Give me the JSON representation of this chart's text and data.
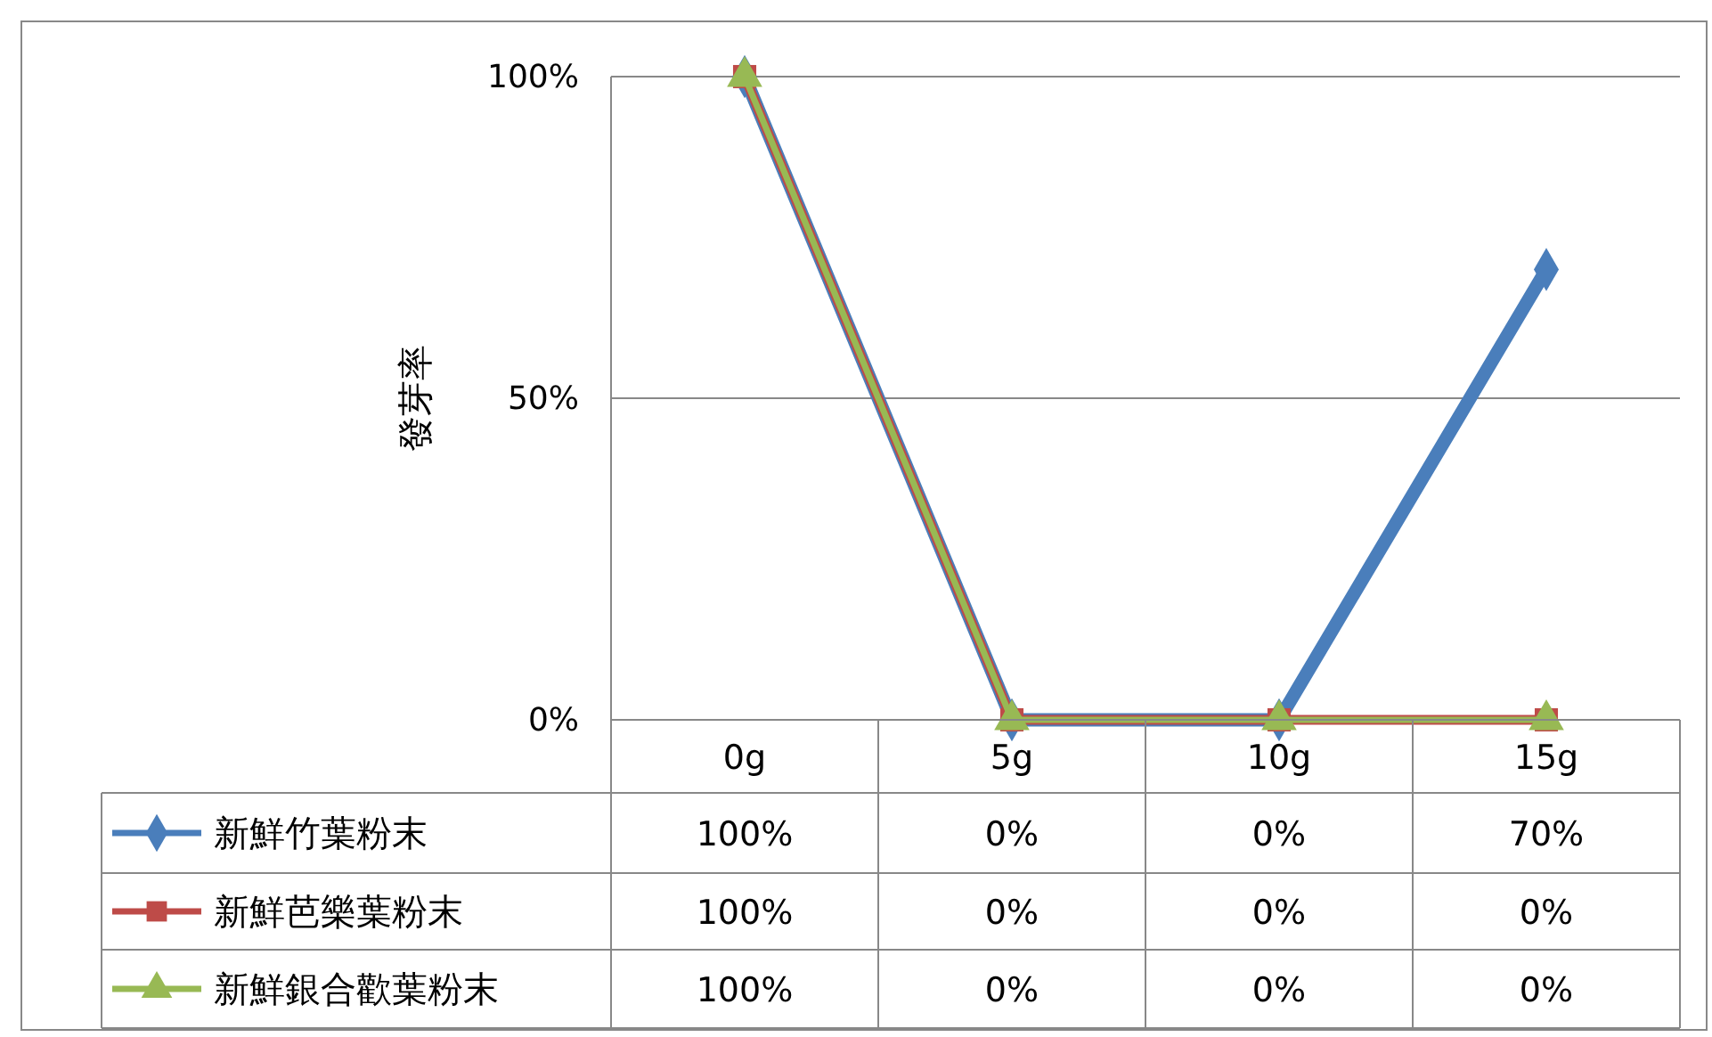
{
  "chart_data": {
    "type": "line",
    "ylabel": "發芽率",
    "categories": [
      "0g",
      "5g",
      "10g",
      "15g"
    ],
    "series": [
      {
        "name": "新鮮竹葉粉末",
        "color": "#4a7ebb",
        "marker": "diamond",
        "values": [
          100,
          0,
          0,
          70
        ],
        "value_labels": [
          "100%",
          "0%",
          "0%",
          "70%"
        ]
      },
      {
        "name": "新鮮芭樂葉粉末",
        "color": "#be4b48",
        "marker": "square",
        "values": [
          100,
          0,
          0,
          0
        ],
        "value_labels": [
          "100%",
          "0%",
          "0%",
          "0%"
        ]
      },
      {
        "name": "新鮮銀合歡葉粉末",
        "color": "#98b954",
        "marker": "triangle",
        "values": [
          100,
          0,
          0,
          0
        ],
        "value_labels": [
          "100%",
          "0%",
          "0%",
          "0%"
        ]
      }
    ],
    "ylim": [
      0,
      100
    ],
    "yticks": [
      {
        "value": 0,
        "label": "0%"
      },
      {
        "value": 50,
        "label": "50%"
      },
      {
        "value": 100,
        "label": "100%"
      }
    ],
    "grid": "y",
    "legend": "bottom"
  }
}
